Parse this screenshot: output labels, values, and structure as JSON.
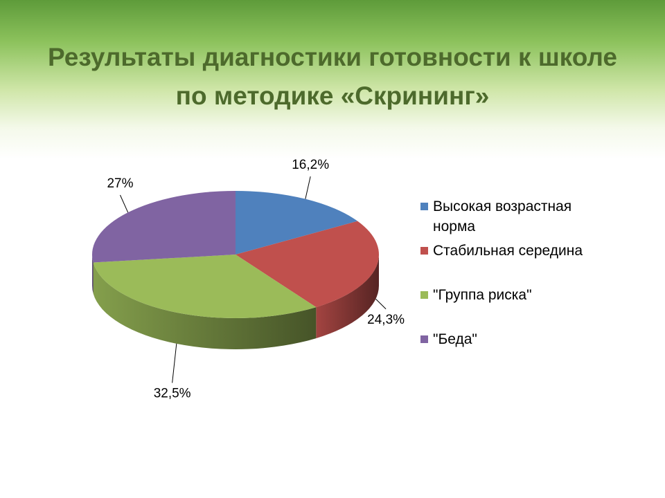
{
  "chart_data": {
    "type": "pie3d",
    "title": "Результаты диагностики готовности к школе по методике «Скрининг»",
    "categories": [
      "Высокая возрастная норма",
      "Стабильная середина",
      "\"Группа риска\"",
      "\"Беда\""
    ],
    "values": [
      16.2,
      24.3,
      32.5,
      27
    ],
    "value_labels": [
      "16,2%",
      "24,3%",
      "32,5%",
      "27%"
    ],
    "colors": [
      "#4f81bd",
      "#c0504d",
      "#9bbb59",
      "#8064a2"
    ],
    "legend": "right"
  }
}
